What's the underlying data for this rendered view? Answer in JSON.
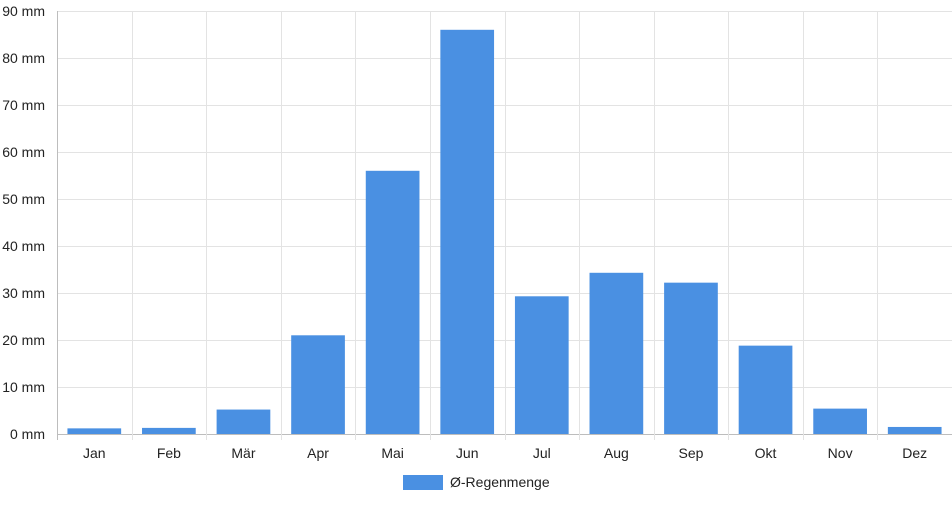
{
  "chart_data": {
    "type": "bar",
    "categories": [
      "Jan",
      "Feb",
      "Mär",
      "Apr",
      "Mai",
      "Jun",
      "Jul",
      "Aug",
      "Sep",
      "Okt",
      "Nov",
      "Dez"
    ],
    "series": [
      {
        "name": "Ø-Regenmenge",
        "values": [
          1.2,
          1.3,
          5.2,
          21,
          56,
          86,
          29.3,
          34.3,
          32.2,
          18.8,
          5.4,
          1.5
        ],
        "color": "#4a90e2"
      }
    ],
    "ylim": [
      0,
      90
    ],
    "yticks": [
      "0 mm",
      "10 mm",
      "20 mm",
      "30 mm",
      "40 mm",
      "50 mm",
      "60 mm",
      "70 mm",
      "80 mm",
      "90 mm"
    ],
    "ytick_values": [
      0,
      10,
      20,
      30,
      40,
      50,
      60,
      70,
      80,
      90
    ],
    "grid": true,
    "legend_position": "bottom-center"
  }
}
